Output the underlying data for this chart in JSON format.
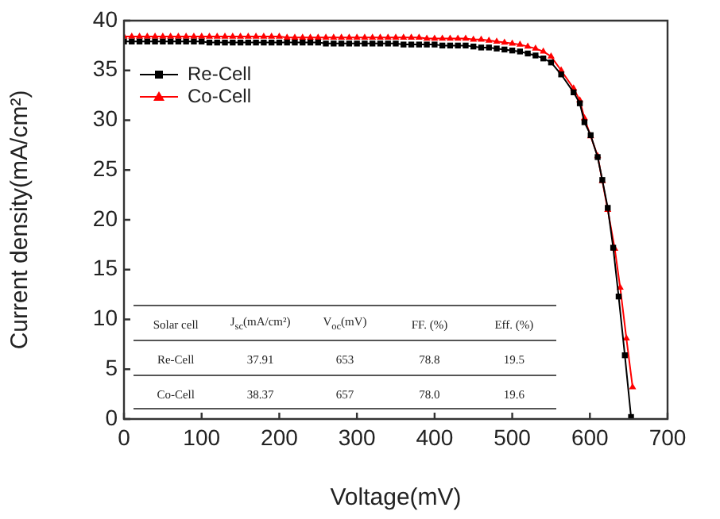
{
  "chart_data": {
    "type": "line",
    "xlabel": "Voltage(mV)",
    "ylabel": "Current density(mA/cm²)",
    "xlim": [
      0,
      700
    ],
    "xticks": [
      0,
      100,
      200,
      300,
      400,
      500,
      600,
      700
    ],
    "ylim": [
      0,
      40
    ],
    "yticks": [
      0,
      5,
      10,
      15,
      20,
      25,
      30,
      35,
      40
    ],
    "legend": "top left",
    "grid": false,
    "series": [
      {
        "name": "Re-Cell",
        "color": "#000000",
        "marker": "square",
        "x": [
          0,
          10,
          20,
          30,
          40,
          50,
          60,
          70,
          80,
          90,
          100,
          110,
          120,
          130,
          140,
          150,
          160,
          170,
          180,
          190,
          200,
          210,
          220,
          230,
          240,
          250,
          260,
          270,
          280,
          290,
          300,
          310,
          320,
          330,
          340,
          350,
          360,
          370,
          380,
          390,
          400,
          410,
          420,
          430,
          440,
          450,
          460,
          470,
          480,
          490,
          500,
          510,
          520,
          530,
          540,
          550,
          563,
          579,
          587,
          593,
          601,
          610,
          616,
          623,
          630,
          637,
          645,
          653
        ],
        "values": [
          37.9,
          37.9,
          37.9,
          37.9,
          37.9,
          37.9,
          37.9,
          37.9,
          37.9,
          37.9,
          37.9,
          37.8,
          37.8,
          37.8,
          37.8,
          37.8,
          37.8,
          37.8,
          37.8,
          37.8,
          37.8,
          37.8,
          37.8,
          37.8,
          37.8,
          37.8,
          37.7,
          37.7,
          37.7,
          37.7,
          37.7,
          37.7,
          37.7,
          37.7,
          37.7,
          37.7,
          37.6,
          37.6,
          37.6,
          37.6,
          37.6,
          37.5,
          37.5,
          37.5,
          37.5,
          37.4,
          37.3,
          37.3,
          37.2,
          37.1,
          37.0,
          36.9,
          36.7,
          36.5,
          36.2,
          35.8,
          34.6,
          32.8,
          31.7,
          29.8,
          28.5,
          26.3,
          24.0,
          21.2,
          17.2,
          12.3,
          6.4,
          0.2
        ]
      },
      {
        "name": "Co-Cell",
        "color": "#ff0000",
        "marker": "triangle",
        "x": [
          0,
          10,
          20,
          30,
          40,
          50,
          60,
          70,
          80,
          90,
          100,
          110,
          120,
          130,
          140,
          150,
          160,
          170,
          180,
          190,
          200,
          210,
          220,
          230,
          240,
          250,
          260,
          270,
          280,
          290,
          300,
          310,
          320,
          330,
          340,
          350,
          360,
          370,
          380,
          390,
          400,
          410,
          420,
          430,
          440,
          450,
          460,
          470,
          480,
          490,
          500,
          510,
          520,
          530,
          540,
          550,
          563,
          579,
          587,
          593,
          601,
          610,
          616,
          623,
          632,
          639,
          647,
          655
        ],
        "values": [
          38.4,
          38.4,
          38.4,
          38.4,
          38.4,
          38.4,
          38.4,
          38.4,
          38.4,
          38.4,
          38.4,
          38.4,
          38.4,
          38.4,
          38.4,
          38.4,
          38.4,
          38.4,
          38.4,
          38.4,
          38.4,
          38.3,
          38.3,
          38.3,
          38.3,
          38.3,
          38.3,
          38.3,
          38.3,
          38.3,
          38.3,
          38.3,
          38.3,
          38.3,
          38.3,
          38.3,
          38.3,
          38.3,
          38.3,
          38.2,
          38.2,
          38.2,
          38.2,
          38.2,
          38.2,
          38.1,
          38.1,
          38.0,
          37.9,
          37.8,
          37.7,
          37.6,
          37.4,
          37.2,
          36.9,
          36.4,
          35.0,
          33.2,
          32.0,
          30.2,
          28.4,
          26.4,
          23.9,
          21.0,
          17.1,
          13.2,
          8.1,
          3.2
        ]
      }
    ],
    "annotations": [
      "Solar cell",
      "J$_{sc}$(mA/cm²)",
      "V$_{oc}$(mV)",
      "FF. (%)",
      "Eff. (%)",
      "Re-Cell",
      "37.91",
      "653",
      "78.8",
      "19.5",
      "Co-Cell",
      "38.37",
      "657",
      "78.0",
      "19.6"
    ]
  }
}
